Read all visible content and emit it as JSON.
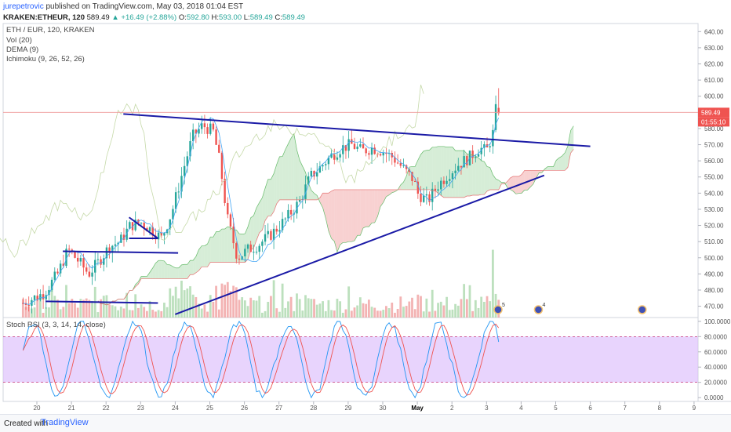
{
  "header": {
    "user": "jurepetrovic",
    "published": "published on TradingView.com, May 03, 2018 01:04 EST",
    "symbol": "KRAKEN:ETHEUR, 120",
    "last": "589.49",
    "change": "+16.49 (+2.88%)",
    "o_label": "O:",
    "o": "592.80",
    "h_label": "H:",
    "h": "593.00",
    "l_label": "L:",
    "l": "589.49",
    "c_label": "C:",
    "c": "589.49"
  },
  "legend": {
    "pair": "ETH / EUR, 120, KRAKEN",
    "vol": "Vol (20)",
    "dema": "DEMA (9)",
    "ichimoku": "Ichimoku (9, 26, 52, 26)",
    "rsi": "Stoch RSI (3, 3, 14, 14, close)"
  },
  "price_tags": {
    "price": "589.49",
    "countdown": "01:55:10"
  },
  "colors": {
    "up": "#26a69a",
    "down": "#ef5350",
    "trendline": "#1a1aa6",
    "cloud_up": "#a5d6a7",
    "cloud_down": "#ef9a9a",
    "rsi_band": "#d8b8fc",
    "k_line": "#2196f3",
    "d_line": "#ef5350",
    "dema": "#42a5f5"
  },
  "chart_data": [
    {
      "type": "candlestick",
      "ylim": [
        463,
        645
      ],
      "y_ticks": [
        "640.00",
        "630.00",
        "620.00",
        "610.00",
        "600.00",
        "590.00",
        "580.00",
        "570.00",
        "560.00",
        "550.00",
        "540.00",
        "530.00",
        "520.00",
        "510.00",
        "500.00",
        "490.00",
        "480.00",
        "470.00"
      ],
      "x_ticks": [
        "20",
        "21",
        "22",
        "23",
        "24",
        "25",
        "26",
        "27",
        "28",
        "29",
        "30",
        "May",
        "2",
        "3",
        "4",
        "5",
        "6",
        "7",
        "8",
        "9"
      ],
      "trendlines": [
        {
          "from": [
            "Apr 22 12:00",
            589
          ],
          "to": [
            "May 6 00:00",
            569
          ]
        },
        {
          "from": [
            "Apr 24 00:00",
            465
          ],
          "to": [
            "May 4 16:00",
            551
          ]
        },
        {
          "from": [
            "Apr 20 06:00",
            473
          ],
          "to": [
            "Apr 23 12:00",
            472
          ]
        },
        {
          "from": [
            "Apr 20 18:00",
            504
          ],
          "to": [
            "Apr 24 02:00",
            503
          ]
        },
        {
          "from": [
            "Apr 22 16:00",
            525
          ],
          "to": [
            "Apr 23 12:00",
            512
          ]
        },
        {
          "from": [
            "Apr 22 16:00",
            512
          ],
          "to": [
            "Apr 23 12:00",
            512
          ]
        }
      ],
      "horizontal_line": 590,
      "event_markers": [
        {
          "x": "May 3 08:00",
          "label": "5"
        },
        {
          "x": "May 4 12:00",
          "label": "4"
        },
        {
          "x": "May 7 12:00",
          "label": ""
        }
      ]
    },
    {
      "type": "line",
      "name": "Stoch RSI",
      "ylim": [
        -5,
        105
      ],
      "y_ticks": [
        "100.0000",
        "80.0000",
        "60.0000",
        "40.0000",
        "20.0000",
        "0.0000"
      ],
      "band": [
        20,
        80
      ]
    }
  ],
  "footer": {
    "created_with": "Created with",
    "brand": "TradingView"
  }
}
